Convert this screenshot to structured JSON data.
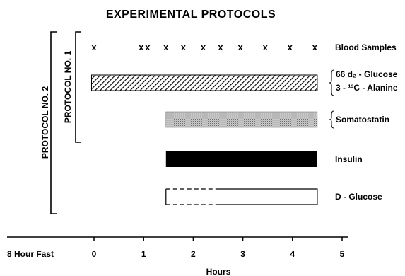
{
  "title": "EXPERIMENTAL PROTOCOLS",
  "protocols": [
    {
      "label": "PROTOCOL NO. 1",
      "from": "Blood Samples",
      "to": "Somatostatin"
    },
    {
      "label": "PROTOCOL NO. 2",
      "from": "Blood Samples",
      "to": "D-Glucose"
    }
  ],
  "axis": {
    "pre_label": "8 Hour Fast",
    "label": "Hours",
    "ticks": [
      "0",
      "1",
      "2",
      "3",
      "4",
      "5"
    ],
    "range": [
      0,
      5
    ]
  },
  "blood_samples": {
    "label": "Blood Samples",
    "marker": "x",
    "times": [
      0,
      0.95,
      1.08,
      1.45,
      1.8,
      2.2,
      2.55,
      2.95,
      3.45,
      3.95,
      4.45
    ]
  },
  "infusions": [
    {
      "name": "glucose-alanine",
      "labels": [
        "66 d₂ - Glucose",
        "3 - ¹³C - Alanine"
      ],
      "brace": true,
      "start": -0.05,
      "end": 4.5,
      "fill": "hatch-diagonal"
    },
    {
      "name": "somatostatin",
      "labels": [
        "Somatostatin"
      ],
      "brace": true,
      "start": 1.45,
      "end": 4.5,
      "fill": "stipple"
    },
    {
      "name": "insulin",
      "labels": [
        "Insulin"
      ],
      "brace": false,
      "start": 1.45,
      "end": 4.5,
      "fill": "solid"
    },
    {
      "name": "d-glucose",
      "labels": [
        "D - Glucose"
      ],
      "brace": false,
      "start": 1.45,
      "end": 4.5,
      "dashed_until": 2.5,
      "fill": "open"
    }
  ]
}
